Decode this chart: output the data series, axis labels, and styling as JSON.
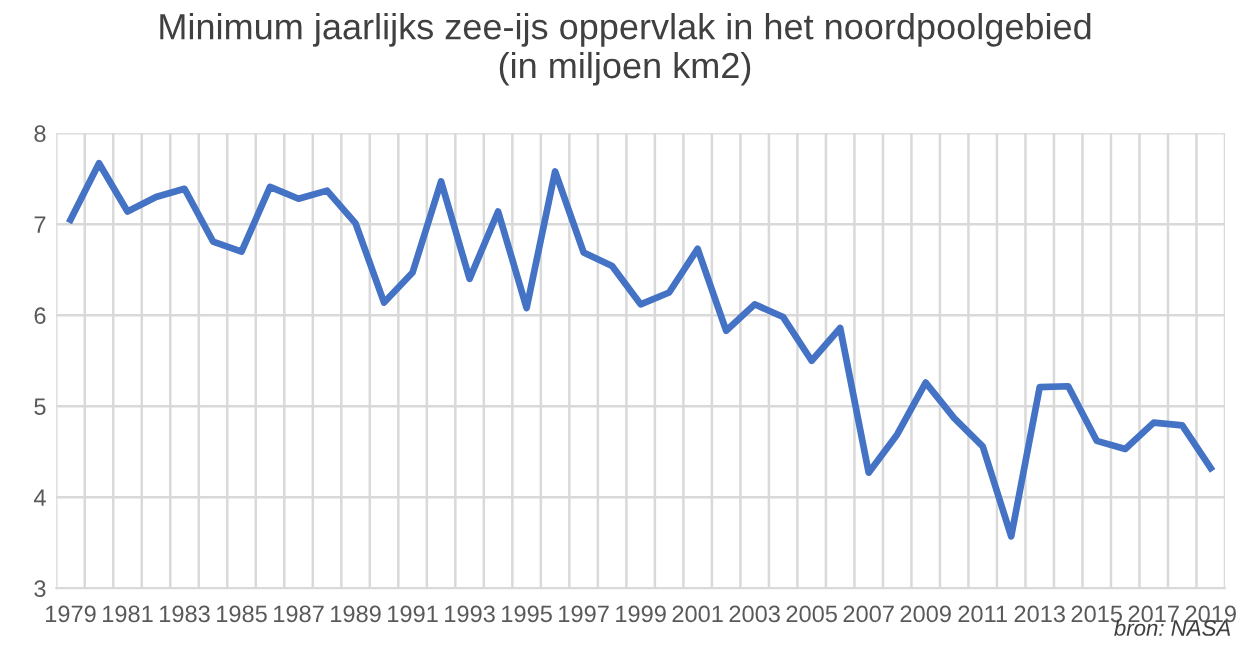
{
  "chart_data": {
    "type": "line",
    "title": "Minimum jaarlijks zee-ijs oppervlak in het noordpoolgebied\n(in miljoen km2)",
    "categories": [
      "1979",
      null,
      "1981",
      null,
      "1983",
      null,
      "1985",
      null,
      "1987",
      null,
      "1989",
      null,
      "1991",
      null,
      "1993",
      null,
      "1995",
      null,
      "1997",
      null,
      "1999",
      null,
      "2001",
      null,
      "2003",
      null,
      "2005",
      null,
      "2007",
      null,
      "2009",
      null,
      "2011",
      null,
      "2013",
      null,
      "2015",
      null,
      "2017",
      null,
      "2019"
    ],
    "series": [
      {
        "color": "#4472c4",
        "values": [
          7.05,
          7.67,
          7.14,
          7.3,
          7.39,
          6.81,
          6.7,
          7.41,
          7.28,
          7.37,
          7.01,
          6.14,
          6.47,
          7.47,
          6.4,
          7.14,
          6.08,
          7.58,
          6.69,
          6.54,
          6.12,
          6.25,
          6.73,
          5.83,
          6.12,
          5.98,
          5.5,
          5.86,
          4.27,
          4.69,
          5.26,
          4.87,
          4.56,
          3.57,
          5.21,
          5.22,
          4.62,
          4.53,
          4.82,
          4.79,
          4.32
        ]
      }
    ],
    "ylim": [
      3,
      8
    ],
    "yticks": [
      3,
      4,
      5,
      6,
      7,
      8
    ],
    "grid": true,
    "marker": "none",
    "line_style": "solid",
    "annotations": [
      "bron: NASA"
    ]
  }
}
